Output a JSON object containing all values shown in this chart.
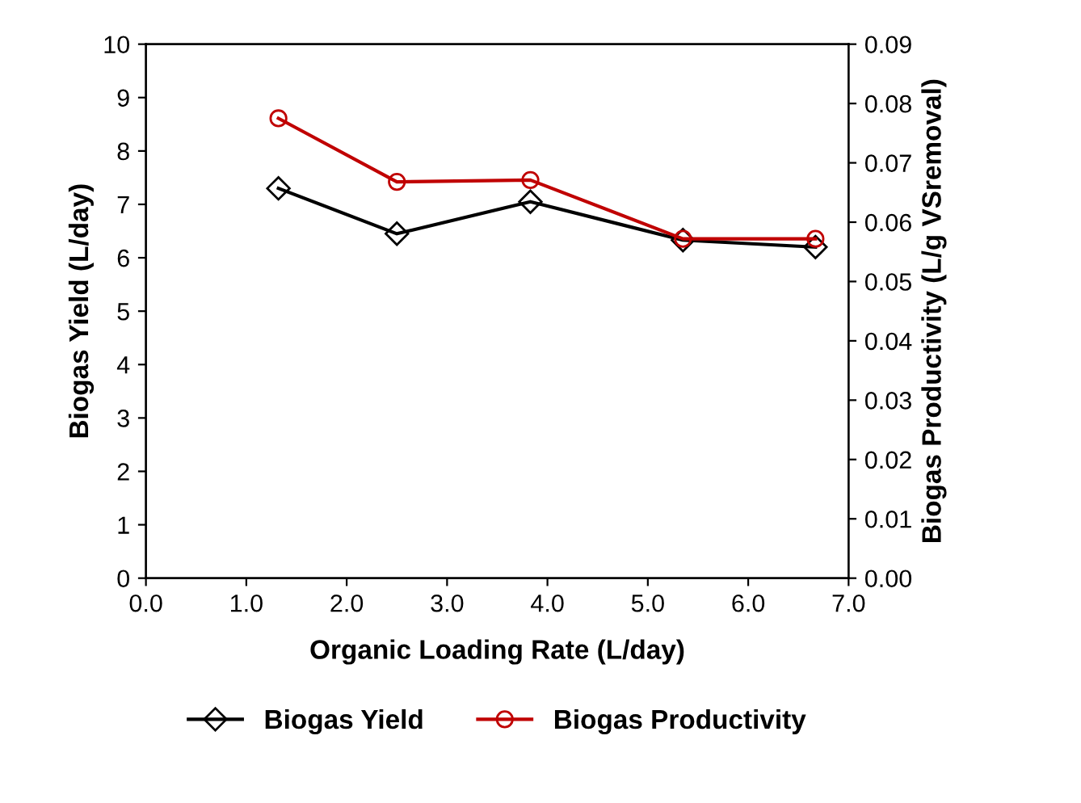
{
  "chart_data": {
    "type": "line",
    "xlabel": "Organic Loading Rate (L/day)",
    "ylabel": "Biogas Yield (L/day)",
    "y2label": "Biogas Productivity (L/g VSremoval)",
    "xlim": [
      0,
      7
    ],
    "xticks": [
      {
        "value": 0,
        "label": "0.0"
      },
      {
        "value": 1,
        "label": "1.0"
      },
      {
        "value": 2,
        "label": "2.0"
      },
      {
        "value": 3,
        "label": "3.0"
      },
      {
        "value": 4,
        "label": "4.0"
      },
      {
        "value": 5,
        "label": "5.0"
      },
      {
        "value": 6,
        "label": "6.0"
      },
      {
        "value": 7,
        "label": "7.0"
      }
    ],
    "ylim": [
      0,
      10
    ],
    "yticks": [
      0,
      1,
      2,
      3,
      4,
      5,
      6,
      7,
      8,
      9,
      10
    ],
    "y2lim": [
      0,
      0.09
    ],
    "y2ticks": [
      {
        "value": 0,
        "label": "0.00"
      },
      {
        "value": 0.01,
        "label": "0.01"
      },
      {
        "value": 0.02,
        "label": "0.02"
      },
      {
        "value": 0.03,
        "label": "0.03"
      },
      {
        "value": 0.04,
        "label": "0.04"
      },
      {
        "value": 0.05,
        "label": "0.05"
      },
      {
        "value": 0.06,
        "label": "0.06"
      },
      {
        "value": 0.07,
        "label": "0.07"
      },
      {
        "value": 0.08,
        "label": "0.08"
      },
      {
        "value": 0.09,
        "label": "0.09"
      }
    ],
    "x": [
      1.32,
      2.5,
      3.83,
      5.35,
      6.67
    ],
    "series": [
      {
        "name": "Biogas Yield",
        "color": "#000000",
        "marker": "diamond",
        "values": [
          7.3,
          6.45,
          7.05,
          6.33,
          6.2
        ]
      },
      {
        "name": "Biogas Productivity",
        "color": "#c00000",
        "marker": "circle",
        "axis": "y2",
        "values": [
          0.0775,
          0.0668,
          0.0671,
          0.0572,
          0.0572
        ]
      }
    ],
    "grid": false,
    "legend": "bottom"
  }
}
